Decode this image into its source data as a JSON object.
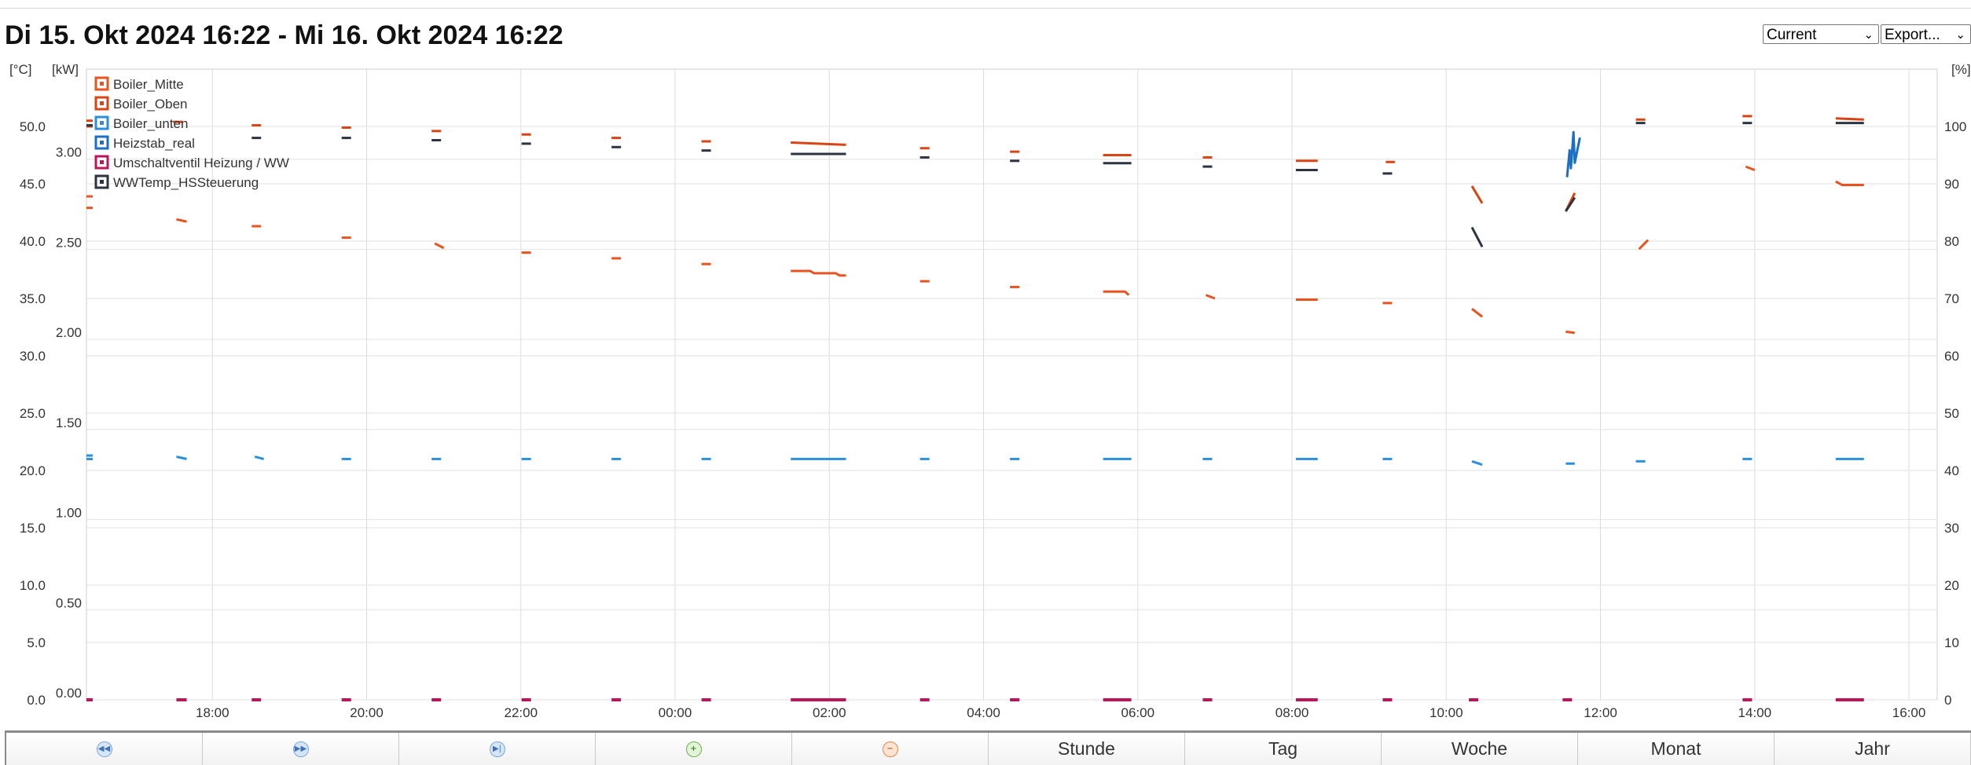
{
  "header": {
    "title": "Di 15. Okt 2024 16:22 - Mi 16. Okt 2024 16:22",
    "period_select": "Current",
    "export_select": "Export..."
  },
  "nav": {
    "buttons": [
      "Stunde",
      "Tag",
      "Woche",
      "Monat",
      "Jahr"
    ],
    "icons": [
      "rewind-icon",
      "fast-forward-icon",
      "skip-end-icon",
      "zoom-in-icon",
      "zoom-out-icon"
    ]
  },
  "chart_data": {
    "type": "line",
    "title": "Di 15. Okt 2024 16:22 - Mi 16. Okt 2024 16:22",
    "x_range": [
      "16:22",
      "16:22"
    ],
    "x_ticks": [
      "18:00",
      "20:00",
      "22:00",
      "00:00",
      "02:00",
      "04:00",
      "06:00",
      "08:00",
      "10:00",
      "12:00",
      "14:00",
      "16:00"
    ],
    "axes": {
      "left_temp": {
        "unit": "[°C]",
        "ylim": [
          0,
          55
        ],
        "ticks": [
          "0.0",
          "5.0",
          "10.0",
          "15.0",
          "20.0",
          "25.0",
          "30.0",
          "35.0",
          "40.0",
          "45.0",
          "50.0"
        ]
      },
      "left_power": {
        "unit": "[kW]",
        "ylim": [
          0,
          3.5
        ],
        "ticks": [
          "0.00",
          "0.50",
          "1.00",
          "1.50",
          "2.00",
          "2.50",
          "3.00"
        ]
      },
      "right_percent": {
        "unit": "[%]",
        "ylim": [
          0,
          110
        ],
        "ticks": [
          "0",
          "10",
          "20",
          "30",
          "40",
          "50",
          "60",
          "70",
          "80",
          "90",
          "100"
        ]
      }
    },
    "grid": true,
    "legend_position": "top-left",
    "series": [
      {
        "name": "Boiler_Mitte",
        "color": "#e8531f",
        "axis": "temp",
        "segments": [
          [
            [
              "16:22",
              42.9
            ]
          ],
          [
            [
              "17:32",
              41.9
            ],
            [
              "17:40",
              41.7
            ]
          ],
          [
            [
              "18:33",
              41.3
            ]
          ],
          [
            [
              "19:43",
              40.3
            ]
          ],
          [
            [
              "20:53",
              39.8
            ],
            [
              "21:00",
              39.4
            ]
          ],
          [
            [
              "22:03",
              39.0
            ]
          ],
          [
            [
              "23:13",
              38.5
            ]
          ],
          [
            [
              "00:23",
              38.0
            ]
          ],
          [
            [
              "01:30",
              37.4
            ],
            [
              "01:45",
              37.4
            ],
            [
              "01:48",
              37.2
            ],
            [
              "02:05",
              37.2
            ],
            [
              "02:08",
              37.0
            ],
            [
              "02:13",
              37.0
            ]
          ],
          [
            [
              "03:13",
              36.5
            ]
          ],
          [
            [
              "04:23",
              36.0
            ]
          ],
          [
            [
              "05:33",
              35.6
            ],
            [
              "05:50",
              35.6
            ],
            [
              "05:53",
              35.3
            ]
          ],
          [
            [
              "06:53",
              35.3
            ],
            [
              "07:00",
              35.0
            ]
          ],
          [
            [
              "08:03",
              34.9
            ],
            [
              "08:20",
              34.9
            ]
          ],
          [
            [
              "09:13",
              34.6
            ]
          ],
          [
            [
              "10:20",
              34.1
            ],
            [
              "10:28",
              33.4
            ]
          ],
          [
            [
              "11:33",
              32.1
            ],
            [
              "11:40",
              32.0
            ]
          ],
          [
            [
              "12:30",
              39.3
            ],
            [
              "12:37",
              40.1
            ]
          ],
          [
            [
              "13:53",
              46.5
            ],
            [
              "14:00",
              46.2
            ]
          ],
          [
            [
              "15:03",
              45.2
            ],
            [
              "15:08",
              44.9
            ],
            [
              "15:25",
              44.9
            ]
          ],
          [
            [
              "16:22",
              43.9
            ]
          ]
        ]
      },
      {
        "name": "Boiler_Oben",
        "color": "#d94414",
        "axis": "temp",
        "segments": [
          [
            [
              "16:22",
              50.0
            ]
          ],
          [
            [
              "17:32",
              50.4
            ]
          ],
          [
            [
              "18:33",
              50.1
            ]
          ],
          [
            [
              "19:43",
              49.9
            ]
          ],
          [
            [
              "20:53",
              49.6
            ]
          ],
          [
            [
              "22:03",
              49.3
            ]
          ],
          [
            [
              "23:13",
              49.0
            ]
          ],
          [
            [
              "00:23",
              48.7
            ]
          ],
          [
            [
              "01:30",
              48.6
            ],
            [
              "02:13",
              48.4
            ]
          ],
          [
            [
              "03:13",
              48.1
            ]
          ],
          [
            [
              "04:23",
              47.8
            ]
          ],
          [
            [
              "05:33",
              47.5
            ],
            [
              "05:55",
              47.5
            ]
          ],
          [
            [
              "06:53",
              47.3
            ]
          ],
          [
            [
              "08:03",
              47.0
            ],
            [
              "08:20",
              47.0
            ]
          ],
          [
            [
              "09:13",
              46.9
            ],
            [
              "09:20",
              46.9
            ]
          ],
          [
            [
              "10:20",
              44.8
            ],
            [
              "10:28",
              43.3
            ]
          ],
          [
            [
              "11:33",
              42.6
            ],
            [
              "11:40",
              44.2
            ]
          ],
          [
            [
              "12:30",
              50.6
            ]
          ],
          [
            [
              "13:53",
              50.9
            ]
          ],
          [
            [
              "15:03",
              50.7
            ],
            [
              "15:25",
              50.6
            ]
          ],
          [
            [
              "16:22",
              50.5
            ]
          ]
        ]
      },
      {
        "name": "Boiler_unten",
        "color": "#2b8fdc",
        "axis": "temp",
        "segments": [
          [
            [
              "16:22",
              21.3
            ]
          ],
          [
            [
              "17:32",
              21.2
            ],
            [
              "17:40",
              21.0
            ]
          ],
          [
            [
              "18:33",
              21.2
            ],
            [
              "18:40",
              21.0
            ]
          ],
          [
            [
              "19:43",
              21.0
            ]
          ],
          [
            [
              "20:53",
              21.0
            ]
          ],
          [
            [
              "22:03",
              21.0
            ]
          ],
          [
            [
              "23:13",
              21.0
            ]
          ],
          [
            [
              "00:23",
              21.0
            ]
          ],
          [
            [
              "01:30",
              21.0
            ],
            [
              "02:13",
              21.0
            ]
          ],
          [
            [
              "03:13",
              21.0
            ]
          ],
          [
            [
              "04:23",
              21.0
            ]
          ],
          [
            [
              "05:33",
              21.0
            ],
            [
              "05:55",
              21.0
            ]
          ],
          [
            [
              "06:53",
              21.0
            ]
          ],
          [
            [
              "08:03",
              21.0
            ],
            [
              "08:20",
              21.0
            ]
          ],
          [
            [
              "09:13",
              21.0
            ]
          ],
          [
            [
              "10:20",
              20.8
            ],
            [
              "10:28",
              20.5
            ]
          ],
          [
            [
              "11:33",
              20.6
            ],
            [
              "11:40",
              20.6
            ]
          ],
          [
            [
              "12:30",
              20.8
            ]
          ],
          [
            [
              "13:53",
              21.0
            ]
          ],
          [
            [
              "15:03",
              21.0
            ],
            [
              "15:25",
              21.0
            ]
          ],
          [
            [
              "16:22",
              21.0
            ]
          ]
        ]
      },
      {
        "name": "Heizstab_real",
        "color": "#1d6fc4",
        "axis": "power",
        "segments": [
          [
            [
              "11:34",
              2.9
            ],
            [
              "11:36",
              3.05
            ],
            [
              "11:37",
              2.95
            ],
            [
              "11:39",
              3.15
            ],
            [
              "11:40",
              2.98
            ],
            [
              "11:42",
              3.05
            ],
            [
              "11:44",
              3.12
            ]
          ]
        ]
      },
      {
        "name": "Umschaltventil Heizung / WW",
        "color": "#c0145a",
        "axis": "percent",
        "segments": [
          [
            [
              "16:22",
              0
            ]
          ],
          [
            [
              "17:32",
              0
            ],
            [
              "17:40",
              0
            ]
          ],
          [
            [
              "18:33",
              0
            ]
          ],
          [
            [
              "19:43",
              0
            ]
          ],
          [
            [
              "20:53",
              0
            ]
          ],
          [
            [
              "22:03",
              0
            ]
          ],
          [
            [
              "23:13",
              0
            ]
          ],
          [
            [
              "00:23",
              0
            ]
          ],
          [
            [
              "01:30",
              0
            ],
            [
              "02:13",
              0
            ]
          ],
          [
            [
              "03:13",
              0
            ]
          ],
          [
            [
              "04:23",
              0
            ]
          ],
          [
            [
              "05:33",
              0
            ],
            [
              "05:55",
              0
            ]
          ],
          [
            [
              "06:53",
              0
            ]
          ],
          [
            [
              "08:03",
              0
            ],
            [
              "08:20",
              0
            ]
          ],
          [
            [
              "09:13",
              0
            ]
          ],
          [
            [
              "10:20",
              0
            ]
          ],
          [
            [
              "11:33",
              0
            ]
          ],
          [
            [
              "13:53",
              0
            ]
          ],
          [
            [
              "15:03",
              0
            ],
            [
              "15:25",
              0
            ]
          ]
        ]
      },
      {
        "name": "WWTemp_HSSteuerung",
        "color": "#2b3440",
        "axis": "temp",
        "segments": [
          [
            [
              "18:33",
              49.0
            ]
          ],
          [
            [
              "19:43",
              49.0
            ]
          ],
          [
            [
              "20:53",
              48.8
            ]
          ],
          [
            [
              "22:03",
              48.5
            ]
          ],
          [
            [
              "23:13",
              48.2
            ]
          ],
          [
            [
              "00:23",
              47.9
            ]
          ],
          [
            [
              "01:30",
              47.6
            ],
            [
              "02:13",
              47.6
            ]
          ],
          [
            [
              "03:13",
              47.3
            ]
          ],
          [
            [
              "04:23",
              47.0
            ]
          ],
          [
            [
              "05:33",
              46.8
            ],
            [
              "05:55",
              46.8
            ]
          ],
          [
            [
              "06:53",
              46.5
            ]
          ],
          [
            [
              "08:03",
              46.2
            ],
            [
              "08:20",
              46.2
            ]
          ],
          [
            [
              "09:13",
              45.9
            ]
          ],
          [
            [
              "10:20",
              41.2
            ],
            [
              "10:28",
              39.5
            ]
          ],
          [
            [
              "11:33",
              42.6
            ],
            [
              "11:40",
              43.8
            ]
          ],
          [
            [
              "12:30",
              50.3
            ]
          ],
          [
            [
              "13:53",
              50.3
            ]
          ],
          [
            [
              "15:03",
              50.3
            ],
            [
              "15:25",
              50.3
            ]
          ],
          [
            [
              "16:22",
              50.1
            ]
          ]
        ]
      }
    ]
  }
}
